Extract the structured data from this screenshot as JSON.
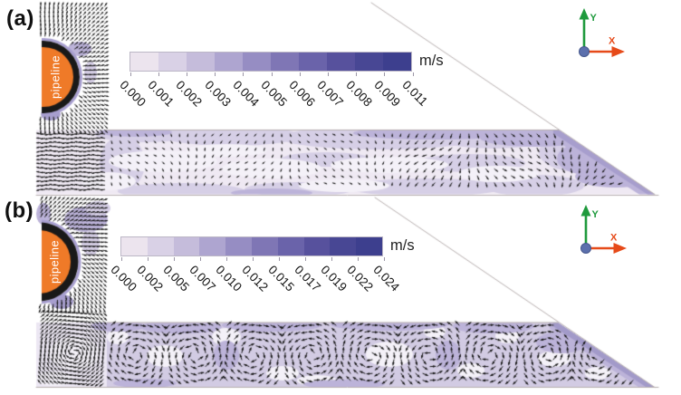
{
  "panels": [
    {
      "id": "a",
      "label": "(a)",
      "pipeline_label": "pipeline",
      "unit": "m/s",
      "colorbar_ticks": [
        "0.000",
        "0.001",
        "0.002",
        "0.003",
        "0.004",
        "0.005",
        "0.006",
        "0.007",
        "0.008",
        "0.009",
        "0.011"
      ],
      "axes": {
        "x": "X",
        "y": "Y"
      }
    },
    {
      "id": "b",
      "label": "(b)",
      "pipeline_label": "pipeline",
      "unit": "m/s",
      "colorbar_ticks": [
        "0.000",
        "0.002",
        "0.005",
        "0.007",
        "0.010",
        "0.012",
        "0.015",
        "0.017",
        "0.019",
        "0.022",
        "0.024"
      ],
      "axes": {
        "x": "X",
        "y": "Y"
      }
    }
  ],
  "colorbar_colors": [
    "#ece4ee",
    "#d9d1e6",
    "#c5bcdb",
    "#aea5d0",
    "#968dc3",
    "#7f76b5",
    "#6a63aa",
    "#57519d",
    "#484794",
    "#3d3f8e"
  ],
  "colors": {
    "pipeline_orange": "#ef7a28",
    "ring_black": "#191919",
    "ring_rim": "#a89fd0",
    "vector": "#161616",
    "band_base_a": "#efe9f3",
    "band_base_b": "#d2cbe3",
    "band_base_left": "#ece7f3",
    "blob_light": "#f4f1f8",
    "blob_mid": "#d6cfe6",
    "blob_dark": "#bcb3d9",
    "blob_darker": "#a79ecd",
    "blob_darkest": "#a29ac9",
    "boundary_line": "#b6aeae",
    "axis_green": "#1f9a3d",
    "axis_red": "#e64a19",
    "axis_dot": "#5c70ad",
    "axis_dot_edge": "#44568c"
  },
  "chart_data": [
    {
      "type": "heatmap",
      "subtype": "velocity-vector-contour-field",
      "panel": "(a)",
      "quantity": "flow velocity magnitude around pipeline",
      "legend_unit": "m/s",
      "colorbar_ticks": [
        0.0,
        0.001,
        0.002,
        0.003,
        0.004,
        0.005,
        0.006,
        0.007,
        0.008,
        0.009,
        0.011
      ],
      "value_range": [
        0,
        0.011
      ],
      "legend_segments": 10,
      "annotations": [
        "pipeline"
      ],
      "axis_labels": [
        "X",
        "Y"
      ],
      "legend_position": "top-left-of-panel"
    },
    {
      "type": "heatmap",
      "subtype": "velocity-vector-contour-field",
      "panel": "(b)",
      "quantity": "flow velocity magnitude around pipeline",
      "legend_unit": "m/s",
      "colorbar_ticks": [
        0.0,
        0.002,
        0.005,
        0.007,
        0.01,
        0.012,
        0.015,
        0.017,
        0.019,
        0.022,
        0.024
      ],
      "value_range": [
        0,
        0.024
      ],
      "legend_segments": 10,
      "annotations": [
        "pipeline"
      ],
      "axis_labels": [
        "X",
        "Y"
      ],
      "legend_position": "top-left-of-panel"
    }
  ]
}
